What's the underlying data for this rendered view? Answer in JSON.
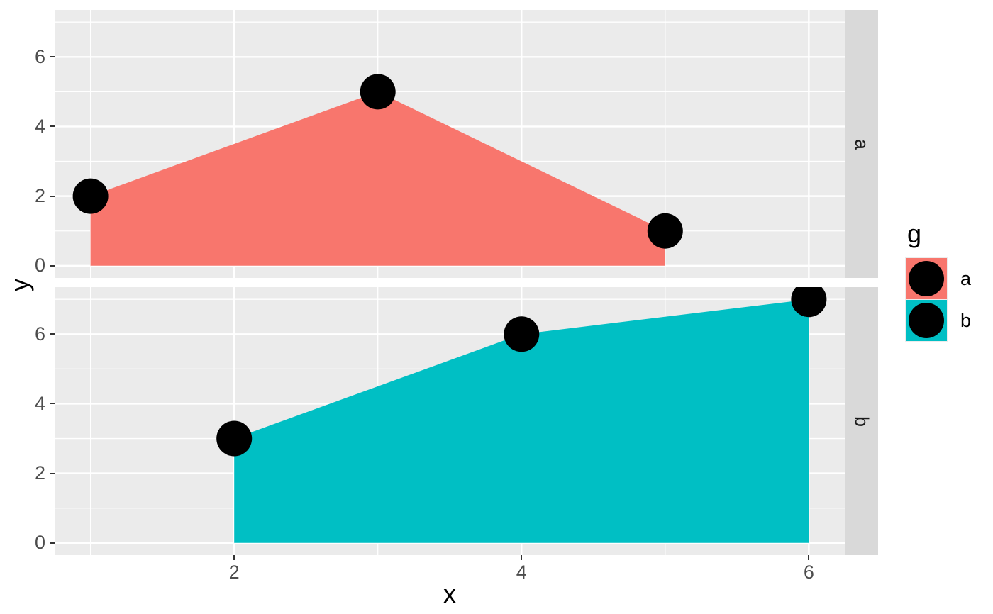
{
  "figure": {
    "kind": "ggplot2 faceted area chart",
    "background": "#FFFFFF"
  },
  "colors": {
    "panel_background": "#EBEBEB",
    "strip_background": "#D9D9D9",
    "grid_line": "#FFFFFF",
    "tick_text": "#4D4D4D",
    "tick_mark": "#333333",
    "title_text": "#000000",
    "point_fill": "#000000",
    "series_a_fill": "#F8766D",
    "series_b_fill": "#00BFC4"
  },
  "legend": {
    "title": "g",
    "entries": [
      {
        "label": "a",
        "swatch": "#F8766D"
      },
      {
        "label": "b",
        "swatch": "#00BFC4"
      }
    ]
  },
  "chart_data": {
    "type": "area",
    "subtype": "area-with-points, facet_grid rows by g",
    "title": "",
    "xlabel": "x",
    "ylabel": "y",
    "facet_variable": "g",
    "legend_title": "g",
    "legend_position": "right",
    "grid": "white major and minor gridlines on gray panel",
    "xlim": [
      0.75,
      6.25
    ],
    "ylim": [
      -0.35,
      7.35
    ],
    "x_major_ticks": [
      2,
      4,
      6
    ],
    "x_minor_ticks": [
      1,
      3,
      5
    ],
    "y_major_ticks": [
      0,
      2,
      4,
      6
    ],
    "y_minor_ticks": [
      1,
      3,
      5,
      7
    ],
    "point_color": "#000000",
    "point_radius_px": 25,
    "baseline_y": 0,
    "facets": [
      {
        "label": "a",
        "fill": "#F8766D",
        "x": [
          1,
          3,
          5
        ],
        "y": [
          2,
          5,
          1
        ]
      },
      {
        "label": "b",
        "fill": "#00BFC4",
        "x": [
          2,
          4,
          6
        ],
        "y": [
          3,
          6,
          7
        ]
      }
    ]
  }
}
